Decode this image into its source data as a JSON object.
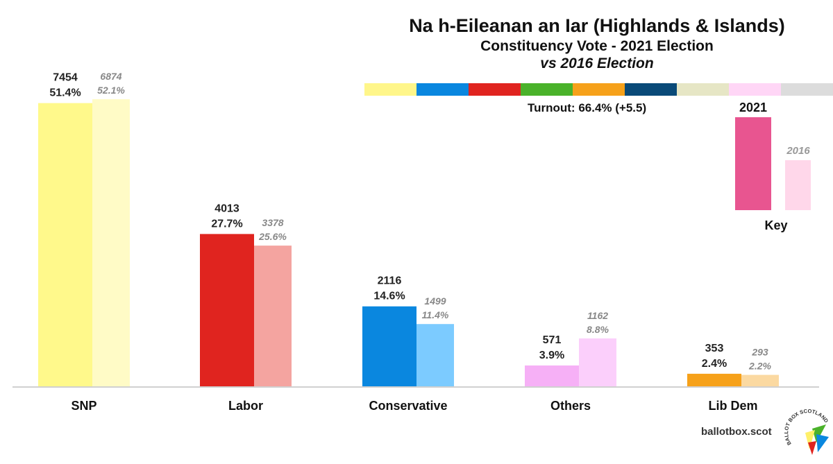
{
  "header": {
    "title": "Na h-Eileanan an Iar (Highlands & Islands)",
    "subtitle": "Constituency Vote - 2021 Election",
    "comparison": "vs 2016 Election",
    "turnout": "Turnout: 66.4% (+5.5)"
  },
  "palette_strip": [
    "#fff68a",
    "#0a87df",
    "#e0241f",
    "#4ab22a",
    "#f6a11a",
    "#0a4a78",
    "#e6e6c5",
    "#ffd6f6",
    "#dcdcdc"
  ],
  "key": {
    "label_2021": "2021",
    "label_2016": "2016",
    "title": "Key",
    "color_2021": "#e85590",
    "color_2016": "#ffd7ea"
  },
  "credit": "ballotbox.scot",
  "logo_text": "BALLOT BOX SCOTLAND",
  "chart_data": {
    "type": "bar",
    "title": "Na h-Eileanan an Iar (Highlands & Islands)",
    "categories": [
      "SNP",
      "Labor",
      "Conservative",
      "Others",
      "Lib Dem"
    ],
    "series": [
      {
        "name": "2021",
        "values": [
          7454,
          4013,
          2116,
          571,
          353
        ],
        "percent_labels": [
          "51.4%",
          "27.7%",
          "14.6%",
          "3.9%",
          "2.4%"
        ],
        "percent_values": [
          51.4,
          27.7,
          14.6,
          3.9,
          2.4
        ],
        "colors": [
          "#fff98b",
          "#e0241f",
          "#0a87df",
          "#f6b0f6",
          "#f6a11a"
        ]
      },
      {
        "name": "2016",
        "values": [
          6874,
          3378,
          1499,
          1162,
          293
        ],
        "percent_labels": [
          "52.1%",
          "25.6%",
          "11.4%",
          "8.8%",
          "2.2%"
        ],
        "percent_values": [
          52.1,
          25.6,
          11.4,
          8.8,
          2.2
        ],
        "colors": [
          "#fffbc6",
          "#f4a4a0",
          "#7ccbff",
          "#fbcffb",
          "#fbd9a1"
        ]
      }
    ],
    "ylim": [
      0,
      56
    ],
    "xlabel": "",
    "ylabel": "",
    "grid": false
  }
}
